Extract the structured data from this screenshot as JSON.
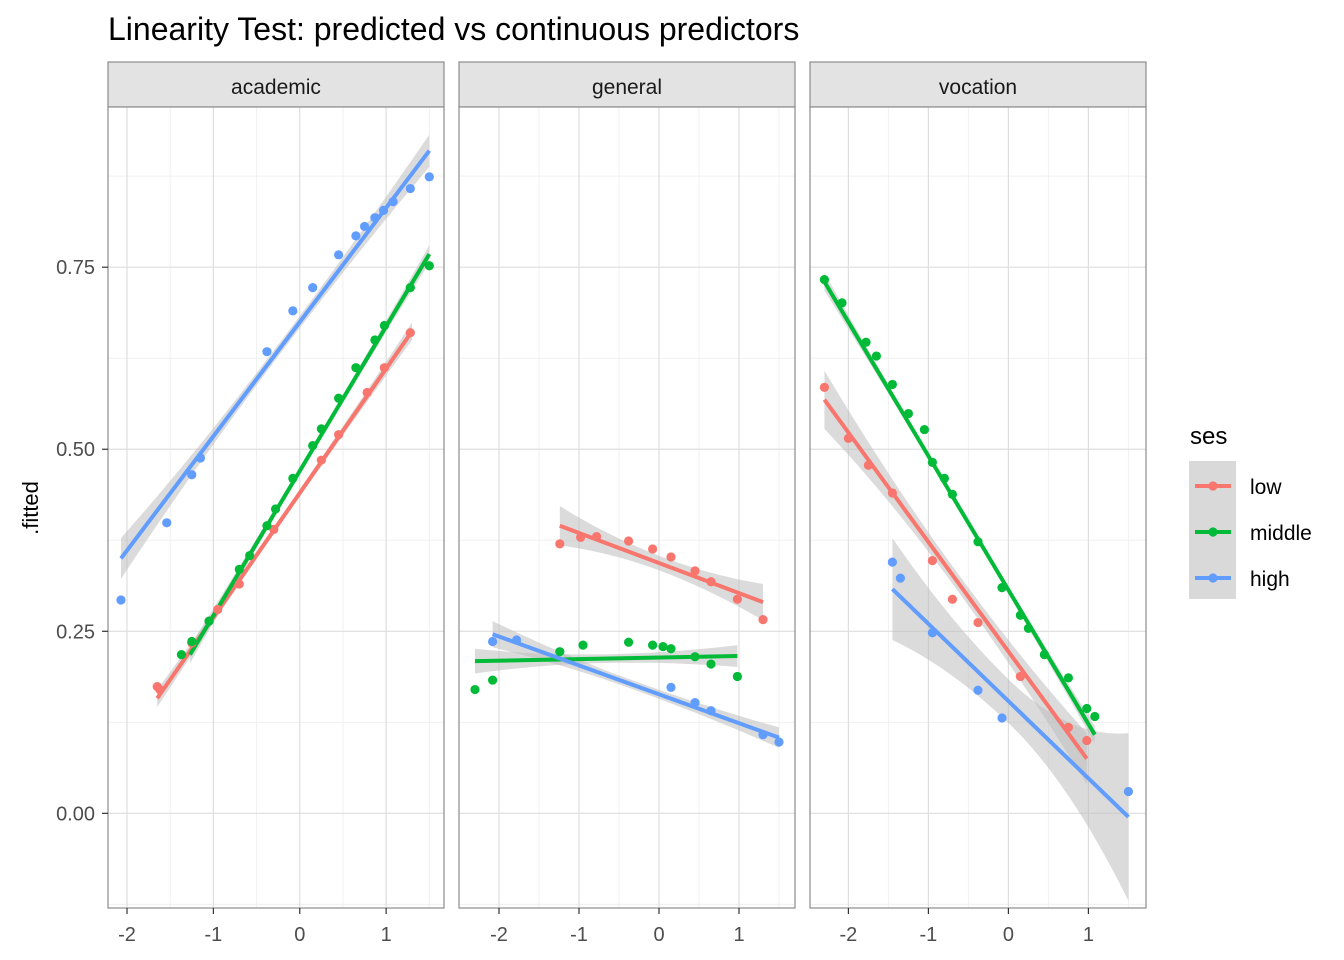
{
  "chart_data": {
    "type": "scatter",
    "title": "Linearity Test: predicted vs continuous predictors",
    "ylabel": ".fitted",
    "xlabel": "",
    "ylim": [
      -0.13,
      0.97
    ],
    "yticks": [
      0.0,
      0.25,
      0.5,
      0.75
    ],
    "ytick_labels": [
      "0.00",
      "0.25",
      "0.50",
      "0.75"
    ],
    "grid": true,
    "legend": {
      "title": "ses",
      "placement": "right",
      "entries": [
        "low",
        "middle",
        "high"
      ]
    },
    "series_colors": {
      "low": "#F8766D",
      "middle": "#00BA38",
      "high": "#619CFF"
    },
    "band_color": "#BEBEBE",
    "panels": [
      {
        "strip": "academic",
        "xlim": [
          -2.22,
          1.67
        ],
        "xticks": [
          -2,
          -1,
          0,
          1
        ],
        "xtick_labels": [
          "-2",
          "-1",
          "0",
          "1"
        ],
        "series": [
          {
            "name": "low",
            "points": [
              [
                -1.65,
                0.174
              ],
              [
                -1.62,
                0.17
              ],
              [
                -1.25,
                0.234
              ],
              [
                -1.05,
                0.264
              ],
              [
                -0.95,
                0.28
              ],
              [
                -0.7,
                0.315
              ],
              [
                -0.3,
                0.39
              ],
              [
                0.25,
                0.485
              ],
              [
                0.45,
                0.52
              ],
              [
                0.78,
                0.578
              ],
              [
                0.98,
                0.612
              ],
              [
                1.28,
                0.66
              ]
            ],
            "fit": [
              [
                -1.65,
                0.158
              ],
              [
                1.3,
                0.662
              ]
            ],
            "band_halfwidth": [
              0.012,
              0.005,
              0.012
            ]
          },
          {
            "name": "middle",
            "points": [
              [
                -1.37,
                0.218
              ],
              [
                -1.25,
                0.236
              ],
              [
                -1.05,
                0.264
              ],
              [
                -0.7,
                0.335
              ],
              [
                -0.58,
                0.354
              ],
              [
                -0.38,
                0.395
              ],
              [
                -0.28,
                0.418
              ],
              [
                -0.08,
                0.46
              ],
              [
                0.15,
                0.505
              ],
              [
                0.25,
                0.528
              ],
              [
                0.45,
                0.57
              ],
              [
                0.65,
                0.612
              ],
              [
                0.87,
                0.65
              ],
              [
                0.98,
                0.67
              ],
              [
                1.28,
                0.722
              ],
              [
                1.5,
                0.752
              ]
            ],
            "fit": [
              [
                -1.27,
                0.218
              ],
              [
                1.5,
                0.768
              ]
            ],
            "band_halfwidth": [
              0.012,
              0.005,
              0.012
            ]
          },
          {
            "name": "high",
            "points": [
              [
                -2.07,
                0.293
              ],
              [
                -1.54,
                0.399
              ],
              [
                -1.25,
                0.465
              ],
              [
                -1.15,
                0.488
              ],
              [
                -0.38,
                0.634
              ],
              [
                -0.08,
                0.69
              ],
              [
                0.15,
                0.722
              ],
              [
                0.45,
                0.767
              ],
              [
                0.65,
                0.793
              ],
              [
                0.75,
                0.806
              ],
              [
                0.87,
                0.818
              ],
              [
                0.97,
                0.828
              ],
              [
                1.08,
                0.84
              ],
              [
                1.28,
                0.858
              ],
              [
                1.5,
                0.874
              ]
            ],
            "fit": [
              [
                -2.07,
                0.35
              ],
              [
                1.5,
                0.91
              ]
            ],
            "band_halfwidth": [
              0.028,
              0.008,
              0.022
            ]
          }
        ]
      },
      {
        "strip": "general",
        "xlim": [
          -2.5,
          1.7
        ],
        "xticks": [
          -2,
          -1,
          0,
          1
        ],
        "xtick_labels": [
          "-2",
          "-1",
          "0",
          "1"
        ],
        "series": [
          {
            "name": "low",
            "points": [
              [
                -1.24,
                0.37
              ],
              [
                -0.98,
                0.379
              ],
              [
                -0.78,
                0.38
              ],
              [
                -0.38,
                0.374
              ],
              [
                -0.08,
                0.363
              ],
              [
                0.15,
                0.352
              ],
              [
                0.45,
                0.333
              ],
              [
                0.65,
                0.318
              ],
              [
                0.98,
                0.294
              ],
              [
                1.3,
                0.266
              ]
            ],
            "fit": [
              [
                -1.24,
                0.395
              ],
              [
                1.3,
                0.29
              ]
            ],
            "band_halfwidth": [
              0.027,
              0.01,
              0.025
            ]
          },
          {
            "name": "middle",
            "points": [
              [
                -2.3,
                0.17
              ],
              [
                -2.08,
                0.183
              ],
              [
                -1.24,
                0.222
              ],
              [
                -0.95,
                0.231
              ],
              [
                -0.38,
                0.235
              ],
              [
                -0.08,
                0.231
              ],
              [
                0.05,
                0.229
              ],
              [
                0.15,
                0.226
              ],
              [
                0.45,
                0.215
              ],
              [
                0.65,
                0.205
              ],
              [
                0.98,
                0.188
              ]
            ],
            "fit": [
              [
                -2.3,
                0.209
              ],
              [
                0.98,
                0.216
              ]
            ],
            "band_halfwidth": [
              0.017,
              0.006,
              0.015
            ]
          },
          {
            "name": "high",
            "points": [
              [
                -2.08,
                0.236
              ],
              [
                -1.78,
                0.238
              ],
              [
                0.15,
                0.173
              ],
              [
                0.45,
                0.152
              ],
              [
                0.65,
                0.141
              ],
              [
                1.3,
                0.108
              ],
              [
                1.5,
                0.098
              ]
            ],
            "fit": [
              [
                -2.08,
                0.246
              ],
              [
                1.5,
                0.104
              ]
            ],
            "band_halfwidth": [
              0.018,
              0.006,
              0.014
            ]
          }
        ]
      },
      {
        "strip": "vocation",
        "xlim": [
          -2.48,
          1.72
        ],
        "xticks": [
          -2,
          -1,
          0,
          1
        ],
        "xtick_labels": [
          "-2",
          "-1",
          "0",
          "1"
        ],
        "series": [
          {
            "name": "low",
            "points": [
              [
                -2.3,
                0.585
              ],
              [
                -2.0,
                0.515
              ],
              [
                -1.75,
                0.478
              ],
              [
                -1.45,
                0.44
              ],
              [
                -0.95,
                0.347
              ],
              [
                -0.7,
                0.294
              ],
              [
                -0.38,
                0.262
              ],
              [
                0.15,
                0.188
              ],
              [
                0.75,
                0.118
              ],
              [
                0.98,
                0.1
              ]
            ],
            "fit": [
              [
                -2.3,
                0.568
              ],
              [
                0.98,
                0.075
              ]
            ],
            "band_halfwidth": [
              0.04,
              0.012,
              0.035
            ]
          },
          {
            "name": "middle",
            "points": [
              [
                -2.3,
                0.733
              ],
              [
                -2.08,
                0.701
              ],
              [
                -1.78,
                0.647
              ],
              [
                -1.65,
                0.628
              ],
              [
                -1.45,
                0.589
              ],
              [
                -1.25,
                0.549
              ],
              [
                -1.05,
                0.527
              ],
              [
                -0.95,
                0.482
              ],
              [
                -0.8,
                0.46
              ],
              [
                -0.7,
                0.438
              ],
              [
                -0.38,
                0.373
              ],
              [
                -0.08,
                0.31
              ],
              [
                0.15,
                0.272
              ],
              [
                0.25,
                0.254
              ],
              [
                0.45,
                0.218
              ],
              [
                0.75,
                0.186
              ],
              [
                0.98,
                0.144
              ],
              [
                1.08,
                0.133
              ]
            ],
            "fit": [
              [
                -2.3,
                0.73
              ],
              [
                1.08,
                0.108
              ]
            ],
            "band_halfwidth": [
              0.012,
              0.004,
              0.012
            ]
          },
          {
            "name": "high",
            "points": [
              [
                -1.45,
                0.345
              ],
              [
                -1.35,
                0.323
              ],
              [
                -0.95,
                0.248
              ],
              [
                -0.38,
                0.169
              ],
              [
                -0.08,
                0.131
              ],
              [
                1.5,
                0.03
              ]
            ],
            "fit": [
              [
                -1.45,
                0.308
              ],
              [
                1.5,
                -0.005
              ]
            ],
            "band_halfwidth": [
              0.07,
              0.03,
              0.115
            ]
          }
        ]
      }
    ]
  }
}
